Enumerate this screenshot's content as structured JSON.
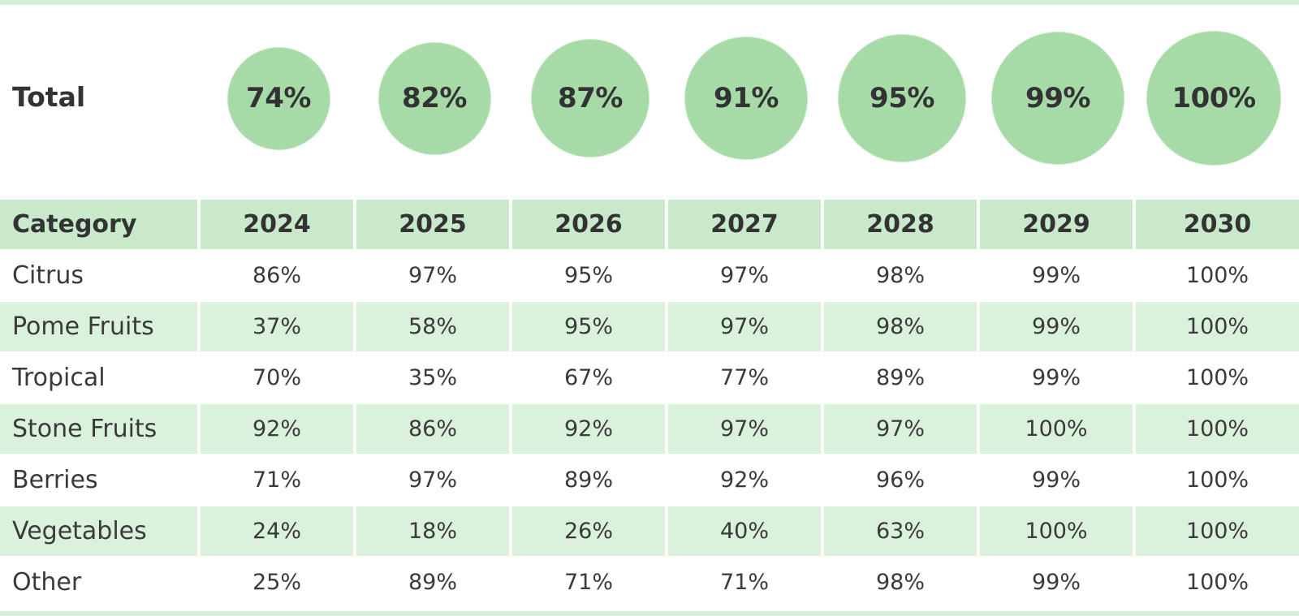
{
  "chart_data": {
    "type": "table",
    "total_label": "Total",
    "header_label": "Category",
    "years": [
      "2024",
      "2025",
      "2026",
      "2027",
      "2028",
      "2029",
      "2030"
    ],
    "totals": [
      74,
      82,
      87,
      91,
      95,
      99,
      100
    ],
    "rows": [
      {
        "category": "Citrus",
        "values": [
          86,
          97,
          95,
          97,
          98,
          99,
          100
        ]
      },
      {
        "category": "Pome Fruits",
        "values": [
          37,
          58,
          95,
          97,
          98,
          99,
          100
        ]
      },
      {
        "category": "Tropical",
        "values": [
          70,
          35,
          67,
          77,
          89,
          99,
          100
        ]
      },
      {
        "category": "Stone Fruits",
        "values": [
          92,
          86,
          92,
          97,
          97,
          100,
          100
        ]
      },
      {
        "category": "Berries",
        "values": [
          71,
          97,
          89,
          92,
          96,
          99,
          100
        ]
      },
      {
        "category": "Vegetables",
        "values": [
          24,
          18,
          26,
          40,
          63,
          100,
          100
        ]
      },
      {
        "category": "Other",
        "values": [
          25,
          89,
          71,
          71,
          98,
          99,
          100
        ]
      }
    ],
    "unit": "%",
    "colors": {
      "bubble": "#a6dba8",
      "header": "#c9e9cb",
      "band": "#daf1dc"
    }
  }
}
